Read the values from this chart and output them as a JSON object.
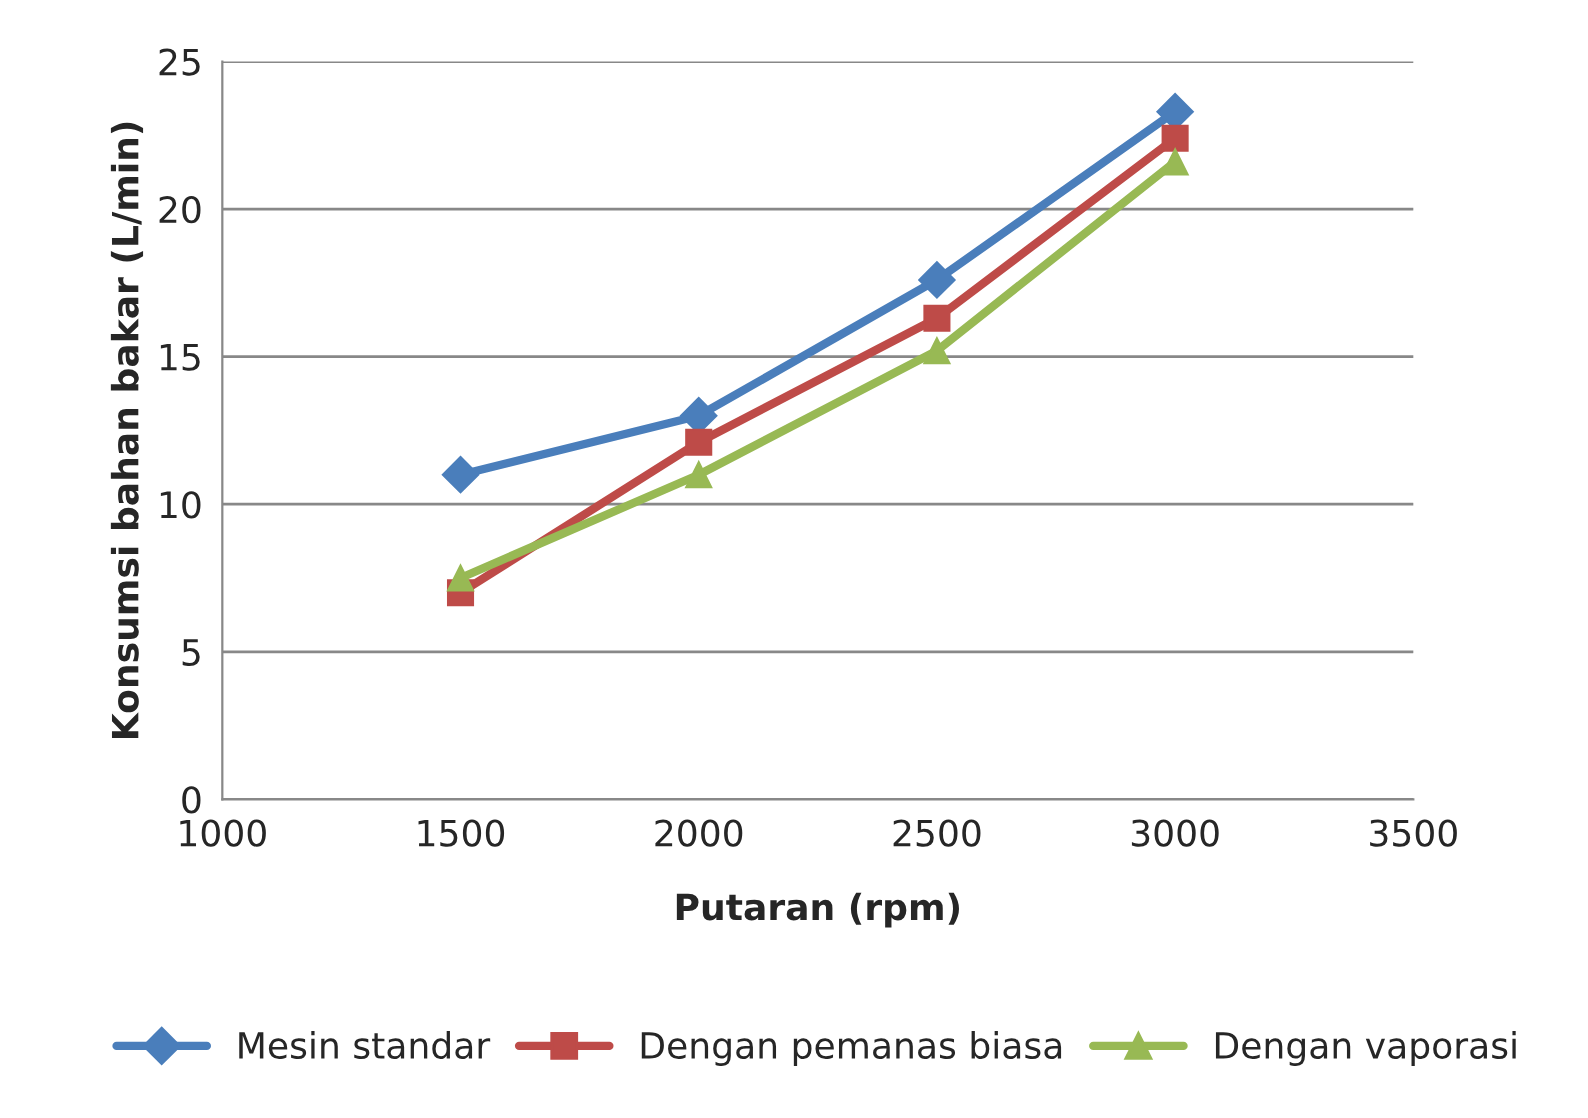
{
  "chart_data": {
    "type": "line",
    "xlabel": "Putaran (rpm)",
    "ylabel": "Konsumsi bahan bakar (L/min)",
    "x": [
      1500,
      2000,
      2500,
      3000
    ],
    "series": [
      {
        "name": "Mesin standar",
        "color": "#4a7ebb",
        "marker": "diamond",
        "values": [
          11.0,
          13.0,
          17.6,
          23.3
        ]
      },
      {
        "name": "Dengan pemanas biasa",
        "color": "#be4b48",
        "marker": "square",
        "values": [
          7.0,
          12.1,
          16.3,
          22.4
        ]
      },
      {
        "name": "Dengan vaporasi",
        "color": "#98b954",
        "marker": "triangle",
        "values": [
          7.5,
          11.0,
          15.2,
          21.6
        ]
      }
    ],
    "xlim": [
      1000,
      3500
    ],
    "xticks": [
      1000,
      1500,
      2000,
      2500,
      3000,
      3500
    ],
    "ylim": [
      0,
      25
    ],
    "yticks": [
      0,
      5,
      10,
      15,
      20,
      25
    ],
    "grid": "y",
    "legend": "bottom",
    "line_style": "solid"
  }
}
